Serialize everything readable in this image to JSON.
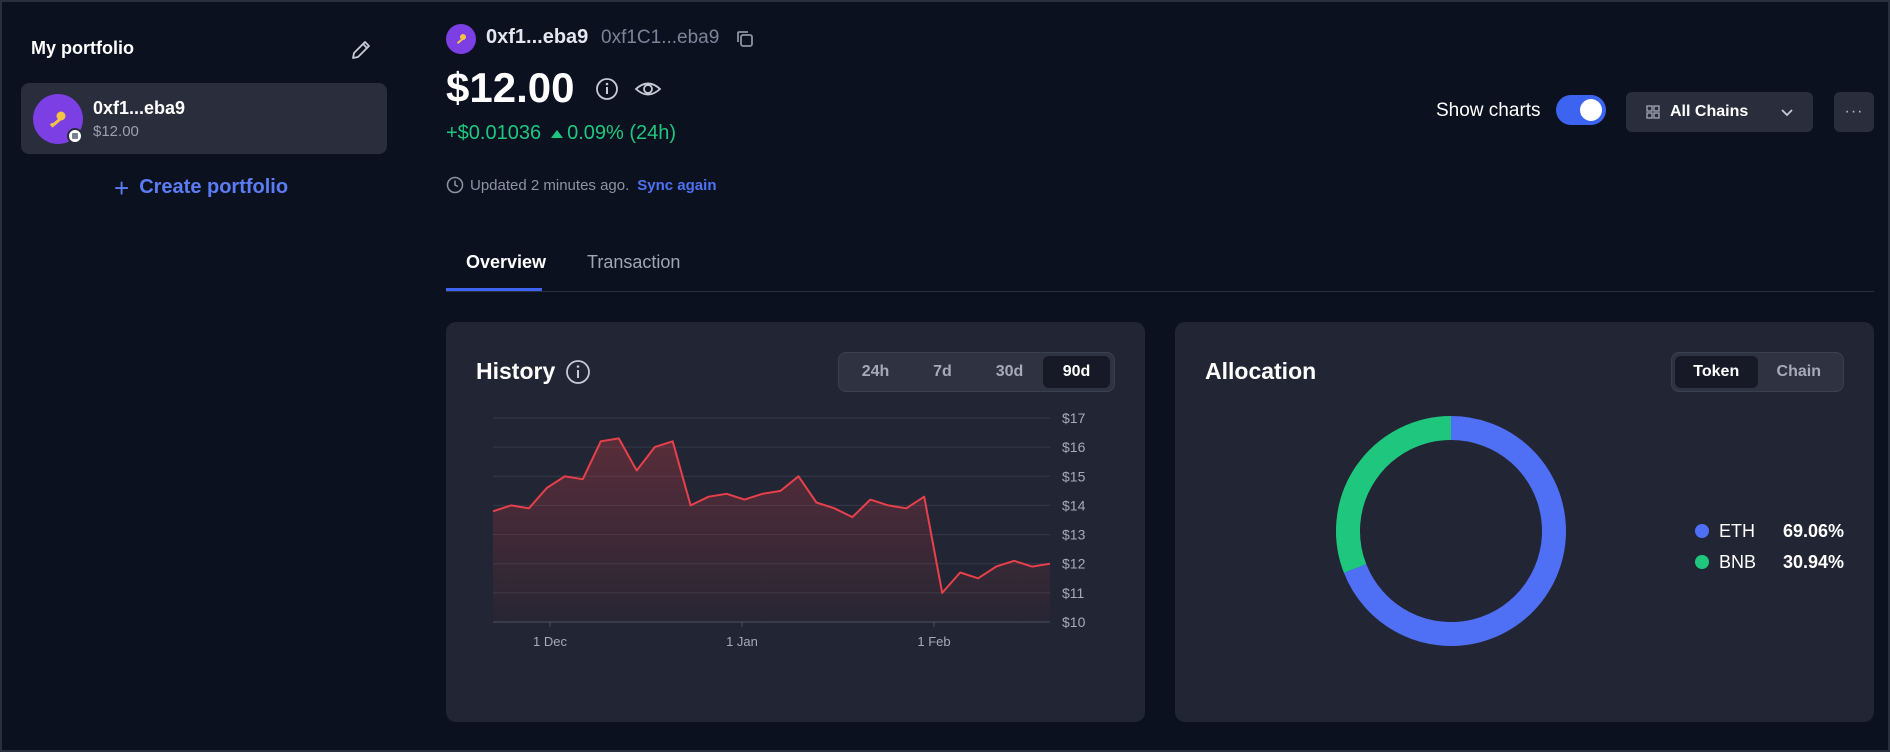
{
  "sidebar": {
    "title": "My portfolio",
    "portfolio": {
      "name": "0xf1...eba9",
      "value": "$12.00"
    },
    "create_label": "Create portfolio"
  },
  "header": {
    "wallet_name": "0xf1...eba9",
    "wallet_address": "0xf1C1...eba9",
    "balance": "$12.00",
    "change_amount": "+$0.01036",
    "change_percent": "0.09% (24h)",
    "updated_text": "Updated 2 minutes ago.",
    "sync_label": "Sync again",
    "show_charts_label": "Show charts",
    "show_charts_on": true,
    "chain_select": "All Chains",
    "more_label": "···"
  },
  "tabs": [
    {
      "label": "Overview",
      "active": true
    },
    {
      "label": "Transaction",
      "active": false
    }
  ],
  "history": {
    "title": "History",
    "ranges": [
      {
        "label": "24h",
        "active": false
      },
      {
        "label": "7d",
        "active": false
      },
      {
        "label": "30d",
        "active": false
      },
      {
        "label": "90d",
        "active": true
      }
    ]
  },
  "allocation": {
    "title": "Allocation",
    "toggle": [
      {
        "label": "Token",
        "active": true
      },
      {
        "label": "Chain",
        "active": false
      }
    ]
  },
  "colors": {
    "accent": "#3c64f0",
    "positive": "#1fc77e",
    "line": "#e8404a",
    "eth": "#4f6ff5",
    "bnb": "#1fc77e"
  },
  "chart_data": [
    {
      "type": "area",
      "title": "History",
      "x_ticks": [
        "1 Dec",
        "1 Jan",
        "1 Feb"
      ],
      "y_ticks": [
        "$17",
        "$16",
        "$15",
        "$14",
        "$13",
        "$12",
        "$11",
        "$10"
      ],
      "ylim": [
        10,
        17
      ],
      "grid": true,
      "x": [
        "Nov 21",
        "Nov 24",
        "Nov 27",
        "Nov 30",
        "Dec 3",
        "Dec 6",
        "Dec 9",
        "Dec 12",
        "Dec 15",
        "Dec 18",
        "Dec 21",
        "Dec 24",
        "Dec 27",
        "Dec 30",
        "Jan 2",
        "Jan 5",
        "Jan 8",
        "Jan 11",
        "Jan 14",
        "Jan 17",
        "Jan 20",
        "Jan 23",
        "Jan 26",
        "Jan 29",
        "Feb 1",
        "Feb 3",
        "Feb 5",
        "Feb 8",
        "Feb 11",
        "Feb 14",
        "Feb 17",
        "Feb 19"
      ],
      "series": [
        {
          "values": [
            13.8,
            14.0,
            13.9,
            14.6,
            15.0,
            14.9,
            16.2,
            16.3,
            15.2,
            16.0,
            16.2,
            14.0,
            14.3,
            14.4,
            14.2,
            14.4,
            14.5,
            15.0,
            14.1,
            13.9,
            13.6,
            14.2,
            14.0,
            13.9,
            14.3,
            11.0,
            11.7,
            11.5,
            11.9,
            12.1,
            11.9,
            12.0
          ]
        }
      ]
    },
    {
      "type": "pie",
      "title": "Allocation",
      "legend_position": "right",
      "categories": [
        "ETH",
        "BNB"
      ],
      "values": [
        69.06,
        30.94
      ],
      "labels": [
        "69.06%",
        "30.94%"
      ]
    }
  ]
}
